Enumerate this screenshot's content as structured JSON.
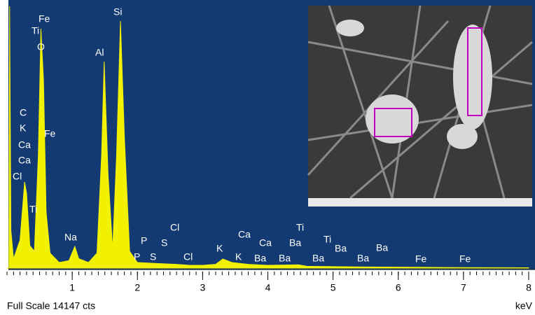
{
  "chart_data": {
    "type": "area",
    "x_label": "keV",
    "footer": "Full Scale 14147 cts",
    "color": "#f2f200",
    "background": "#143a74",
    "xlim": [
      0,
      8
    ],
    "ylim": [
      0,
      14147
    ],
    "xticks": [
      1,
      2,
      3,
      4,
      5,
      6,
      7,
      8
    ],
    "x": [
      0.0,
      0.03,
      0.04,
      0.06,
      0.1,
      0.2,
      0.27,
      0.3,
      0.35,
      0.42,
      0.48,
      0.52,
      0.56,
      0.6,
      0.66,
      0.8,
      0.95,
      1.04,
      1.1,
      1.25,
      1.38,
      1.45,
      1.49,
      1.55,
      1.62,
      1.68,
      1.74,
      1.8,
      1.88,
      2.0,
      2.3,
      2.6,
      2.8,
      3.0,
      3.2,
      3.31,
      3.45,
      3.7,
      4.0,
      4.47,
      4.6,
      5.0,
      5.5,
      6.0,
      6.4,
      7.0,
      8.0
    ],
    "values": [
      0,
      0,
      14000,
      2000,
      500,
      1500,
      4600,
      4000,
      1200,
      900,
      6000,
      12800,
      10000,
      3000,
      800,
      300,
      400,
      1160,
      500,
      300,
      800,
      6000,
      11040,
      5000,
      1000,
      6000,
      13210,
      7000,
      900,
      300,
      250,
      200,
      150,
      150,
      200,
      490,
      300,
      200,
      150,
      180,
      100,
      80,
      60,
      50,
      40,
      30,
      20
    ],
    "annotations": [
      "Fe",
      "Ti",
      "O",
      "C",
      "K",
      "Ca",
      "Fe",
      "Ca",
      "Cl",
      "Ti",
      "Na",
      "Al",
      "Si",
      "Cl",
      "P",
      "S",
      "P",
      "S",
      "Cl",
      "K",
      "K",
      "Ca",
      "Ca",
      "Ti",
      "Ba",
      "Ba",
      "Ba",
      "Ti",
      "Ba",
      "Ba",
      "Ba",
      "Ba",
      "Fe",
      "Fe"
    ]
  }
}
